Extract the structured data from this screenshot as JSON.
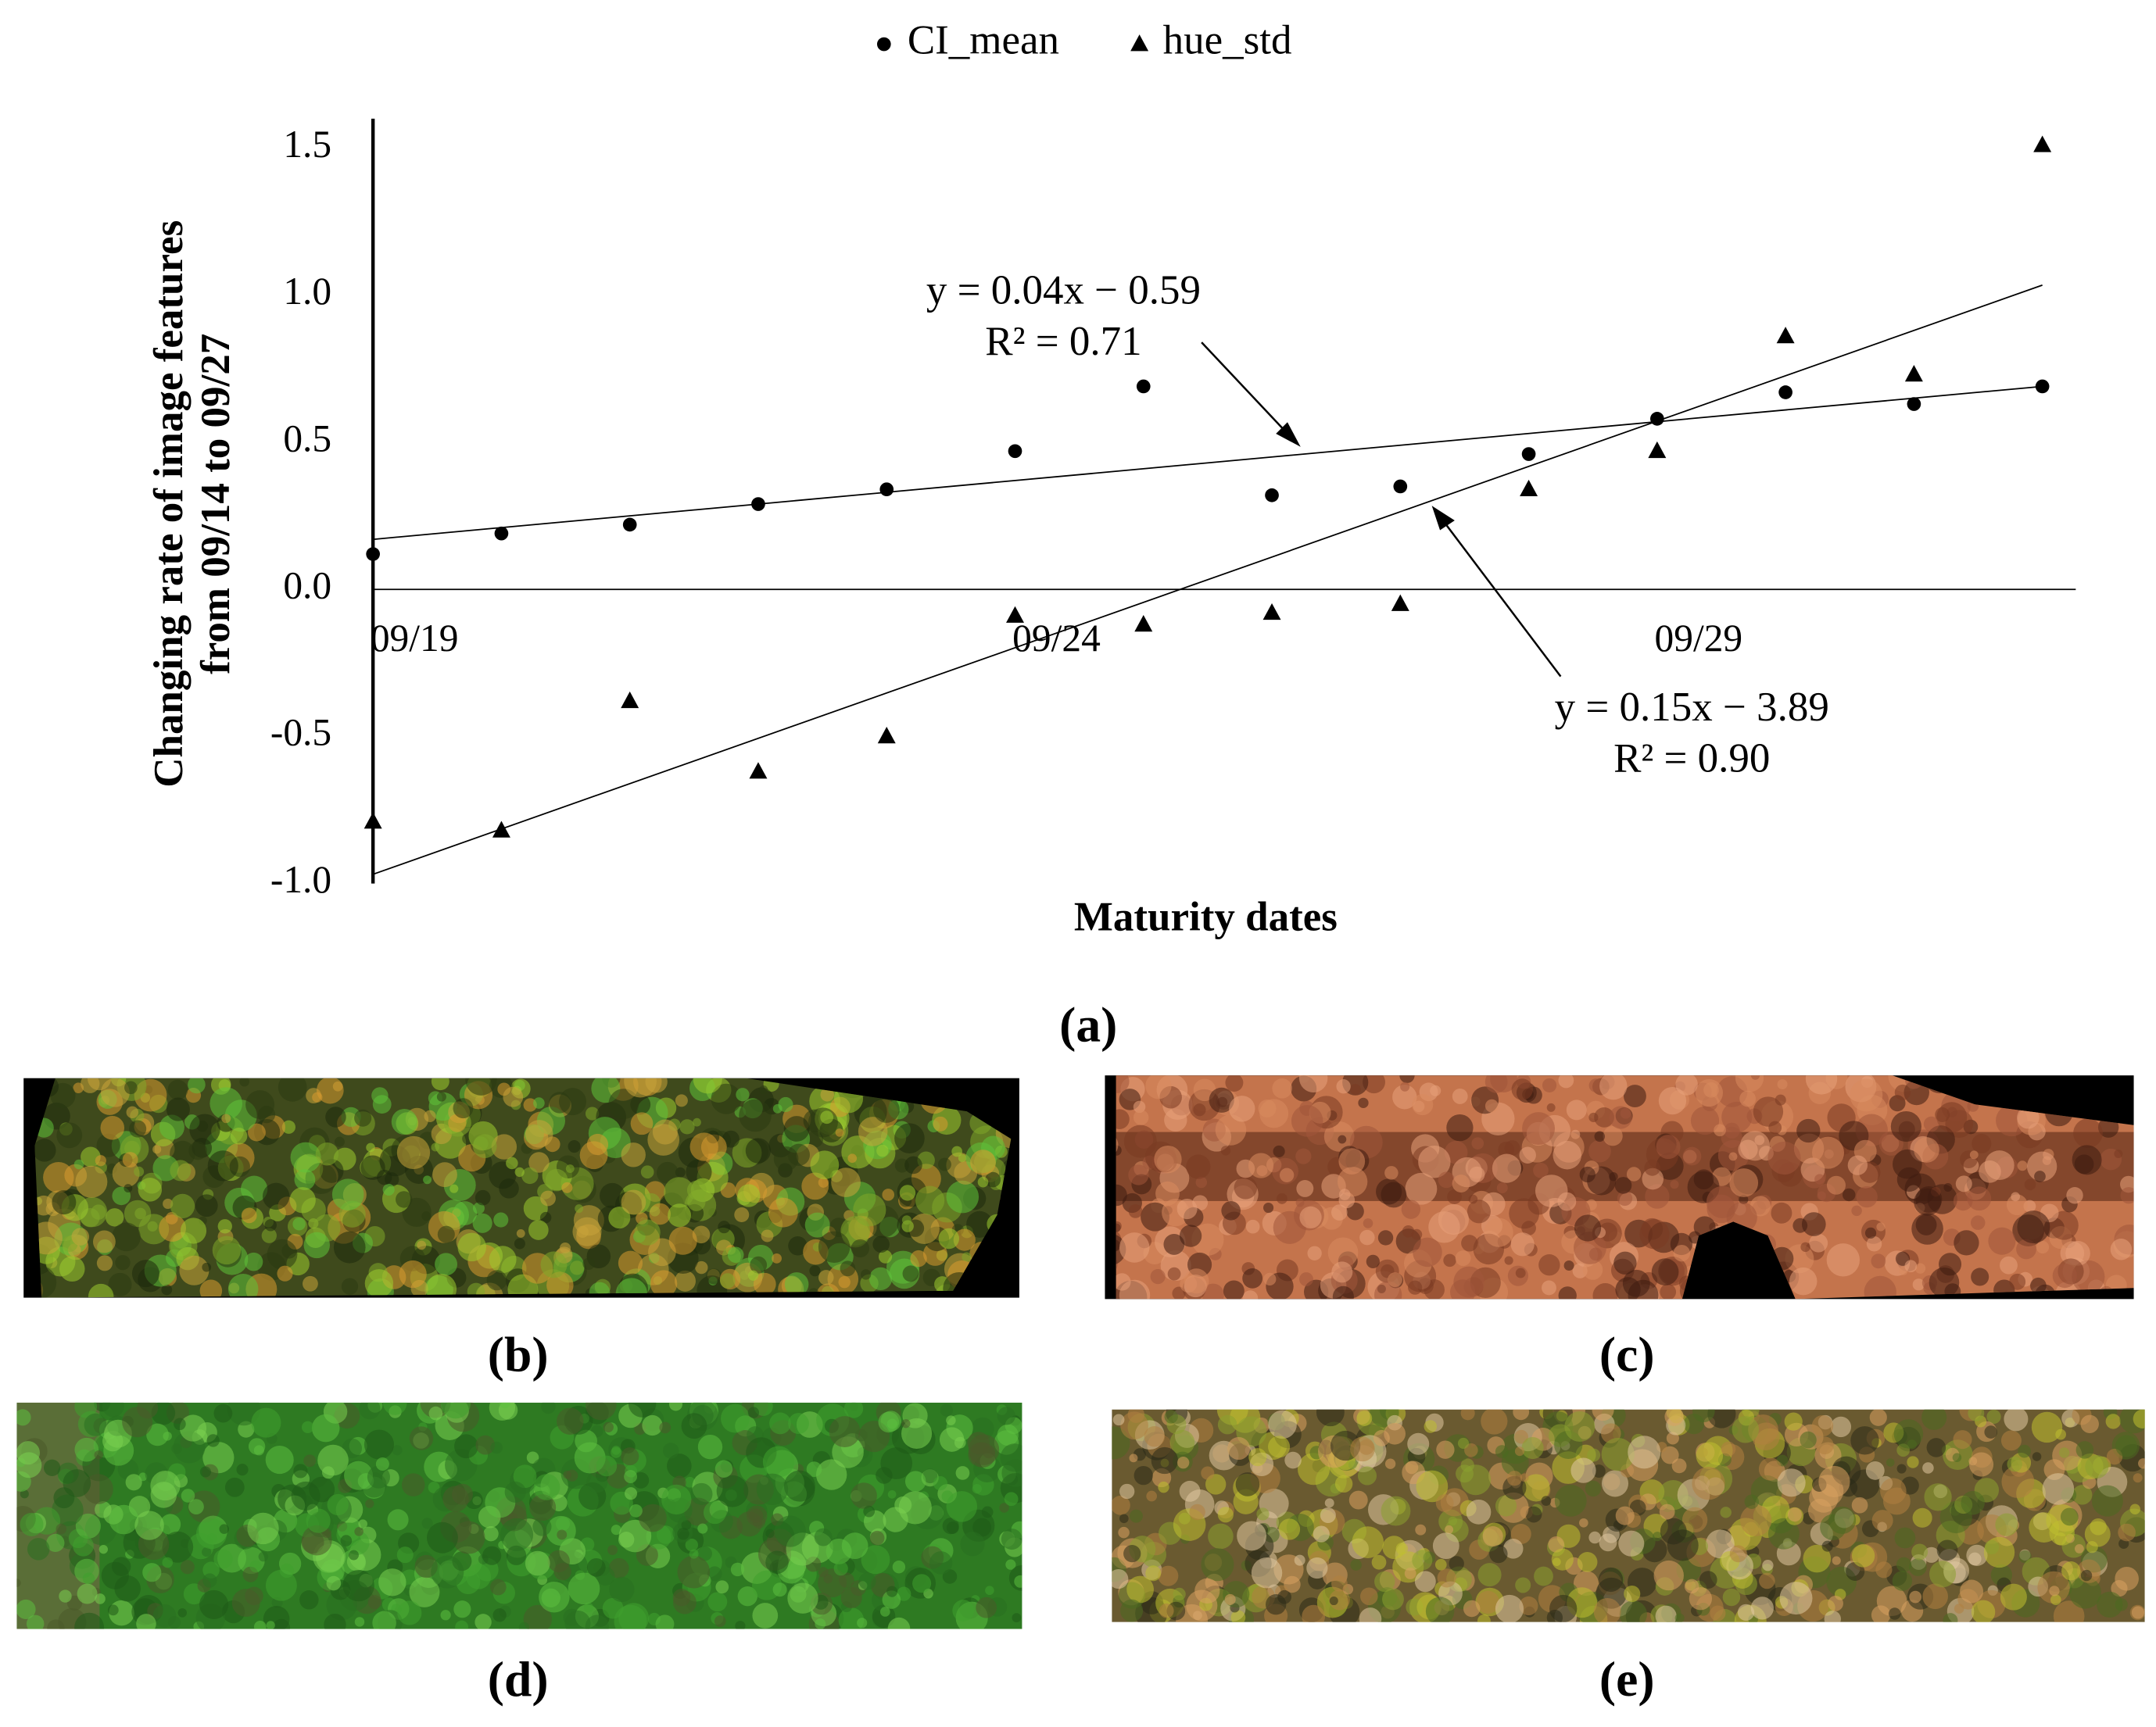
{
  "chart_data": {
    "type": "scatter",
    "x_label": "Maturity dates",
    "y_label_lines": [
      "Changing rate of image features",
      "from 09/14 to 09/27"
    ],
    "x": [
      19,
      20,
      21,
      22,
      23,
      24,
      25,
      26,
      27,
      28,
      29,
      30,
      31,
      32
    ],
    "xlim": [
      19,
      32.26
    ],
    "xticks": [
      {
        "value": 19,
        "label": "09/19"
      },
      {
        "value": 24,
        "label": "09/24"
      },
      {
        "value": 29,
        "label": "09/29"
      }
    ],
    "ylim": [
      -1.0,
      1.6
    ],
    "yticks": [
      {
        "value": -1.0,
        "label": "-1.0"
      },
      {
        "value": -0.5,
        "label": "-0.5"
      },
      {
        "value": 0.0,
        "label": "0.0"
      },
      {
        "value": 0.5,
        "label": "0.5"
      },
      {
        "value": 1.0,
        "label": "1.0"
      },
      {
        "value": 1.5,
        "label": "1.5"
      }
    ],
    "trendline": true,
    "legend": "top",
    "series": [
      {
        "name": "CI_mean",
        "color": "#000000",
        "marker": "circle",
        "values": [
          0.12,
          0.19,
          0.22,
          0.29,
          0.34,
          0.47,
          0.69,
          0.32,
          0.35,
          0.46,
          0.58,
          0.67,
          0.63,
          0.69
        ]
      },
      {
        "name": "hue_std",
        "color": "#000000",
        "marker": "triangle",
        "values": [
          -0.79,
          -0.82,
          -0.38,
          -0.62,
          -0.5,
          -0.09,
          -0.12,
          -0.08,
          -0.05,
          0.34,
          0.47,
          0.86,
          0.73,
          1.51
        ]
      }
    ],
    "annotations": [
      {
        "lines": [
          "y = 0.04x − 0.59",
          "R² = 0.71"
        ]
      },
      {
        "lines": [
          "y = 0.15x − 3.89",
          "R² = 0.90"
        ]
      }
    ]
  },
  "panels": [
    "(a)",
    "(b)",
    "(c)",
    "(d)",
    "(e)"
  ]
}
